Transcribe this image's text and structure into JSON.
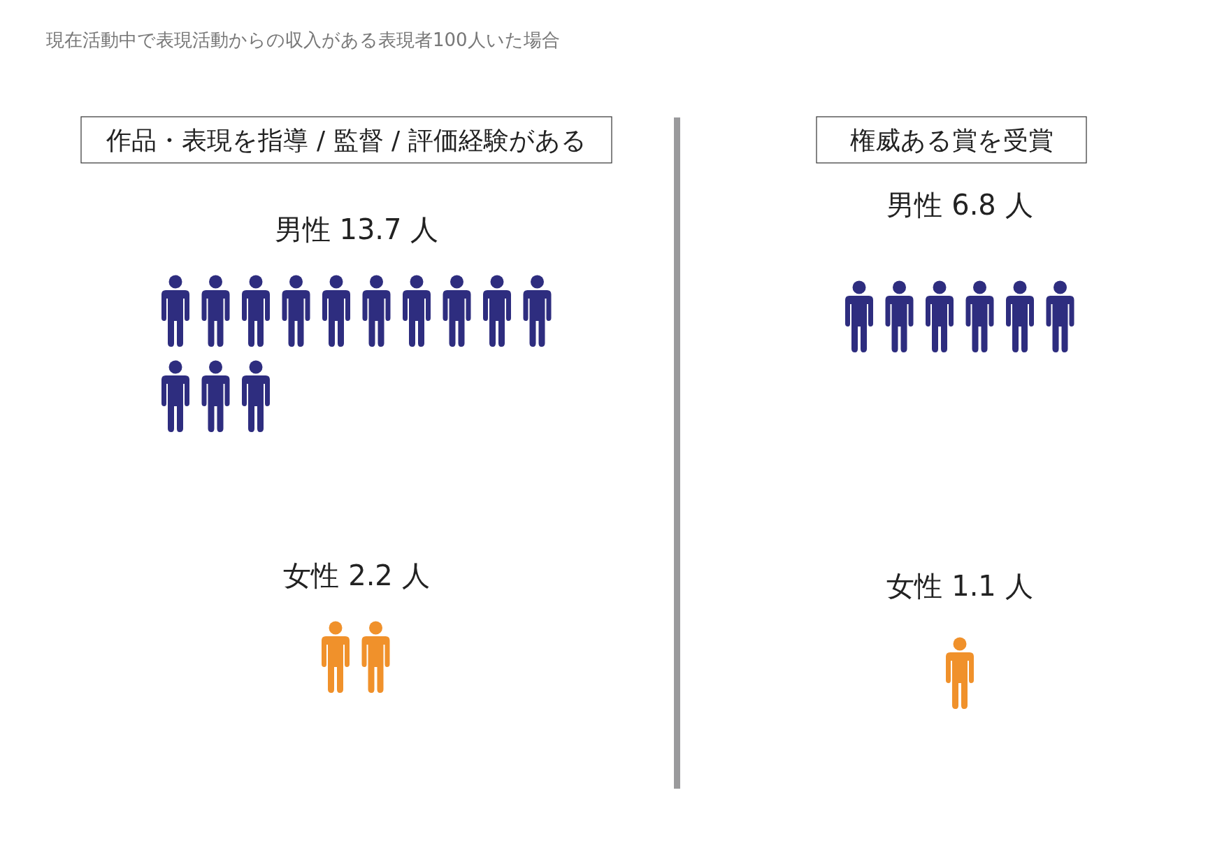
{
  "chart_data": [
    {
      "type": "other",
      "annotations": [
        "現在活動中で表現活動からの収入がある表現者100人いた場合"
      ],
      "title": "作品・表現を指導 / 監督 / 評価経験がある",
      "values": [
        13.7,
        2.2
      ],
      "value_labels": [
        "男性 13.7 人",
        "女性 2.2 人"
      ],
      "colors": [
        "#2e2d7f",
        "#f0912b"
      ]
    },
    {
      "type": "other",
      "title": "権威ある賞を受賞",
      "values": [
        6.8,
        1.1
      ],
      "value_labels": [
        "男性 6.8 人",
        "女性 1.1 人"
      ],
      "colors": [
        "#2e2d7f",
        "#f0912b"
      ]
    }
  ]
}
